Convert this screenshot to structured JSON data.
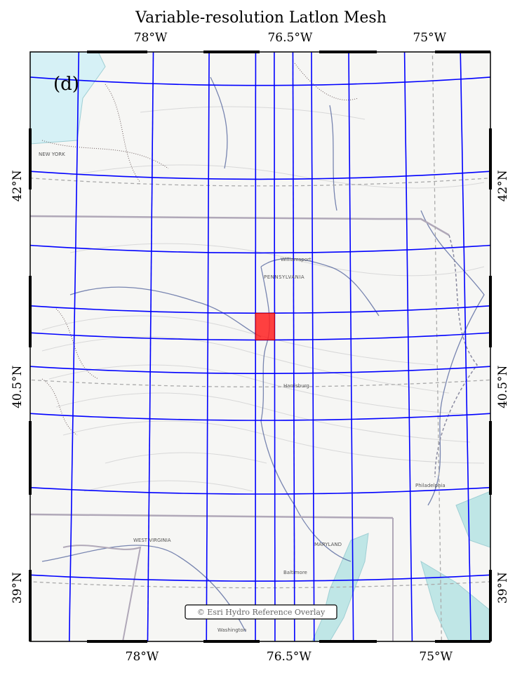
{
  "title": "Variable-resolution Latlon Mesh",
  "panel_label": "(d)",
  "attribution": "© Esri Hydro Reference Overlay",
  "ticks": {
    "top": [
      {
        "label": "78°W",
        "lon": -78.0
      },
      {
        "label": "76.5°W",
        "lon": -76.5
      },
      {
        "label": "75°W",
        "lon": -75.0
      }
    ],
    "bottom": [
      {
        "label": "78°W",
        "lon": -78.0
      },
      {
        "label": "76.5°W",
        "lon": -76.5
      },
      {
        "label": "75°W",
        "lon": -75.0
      }
    ],
    "left": [
      {
        "label": "42°N",
        "lat": 42.0
      },
      {
        "label": "40.5°N",
        "lat": 40.5
      },
      {
        "label": "39°N",
        "lat": 39.0
      }
    ],
    "right": [
      {
        "label": "42°N",
        "lat": 42.0
      },
      {
        "label": "40.5°N",
        "lat": 40.5
      },
      {
        "label": "39°N",
        "lat": 39.0
      }
    ]
  },
  "extent": {
    "lon_min": -79.2,
    "lon_max": -74.5,
    "lat_min": 38.6,
    "lat_max": 43.0
  },
  "mesh": {
    "color": "#0000ff",
    "lons": [
      -78.8,
      -78.0,
      -77.4,
      -76.9,
      -76.7,
      -76.5,
      -76.3,
      -75.9,
      -75.3,
      -74.7
    ],
    "lats": [
      42.75,
      42.05,
      41.5,
      41.05,
      40.85,
      40.6,
      40.25,
      39.7,
      39.05
    ]
  },
  "highlight_cell": {
    "lon_min": -76.9,
    "lon_max": -76.7,
    "lat_min": 40.85,
    "lat_max": 41.05,
    "color": "#ff2020"
  },
  "map_labels": [
    "PENNSYLVANIA",
    "NEW YORK",
    "MARYLAND",
    "WEST VIRGINIA",
    "Philadelphia",
    "Williamsport",
    "Harrisburg",
    "Baltimore",
    "Washington"
  ]
}
